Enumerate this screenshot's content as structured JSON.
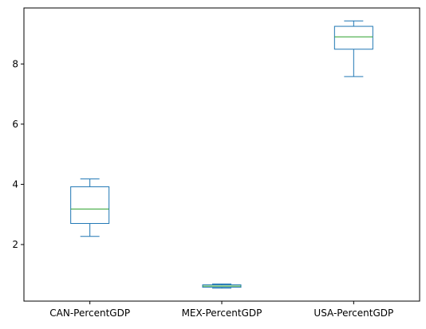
{
  "chart_data": {
    "type": "box",
    "categories": [
      "CAN-PercentGDP",
      "MEX-PercentGDP",
      "USA-PercentGDP"
    ],
    "boxes": [
      {
        "whisker_low": 2.27,
        "q1": 2.7,
        "median": 3.18,
        "q3": 3.92,
        "whisker_high": 4.18
      },
      {
        "whisker_low": 0.55,
        "q1": 0.58,
        "median": 0.62,
        "q3": 0.66,
        "whisker_high": 0.69
      },
      {
        "whisker_low": 7.58,
        "q1": 8.49,
        "median": 8.9,
        "q3": 9.25,
        "whisker_high": 9.43
      }
    ],
    "y_ticks": [
      2,
      4,
      6,
      8
    ],
    "ylim": [
      0.12,
      9.86
    ],
    "xlabel": "",
    "ylabel": "",
    "title": "",
    "grid": false,
    "box_color": "#1f77b4",
    "median_color": "#2ca02c"
  }
}
